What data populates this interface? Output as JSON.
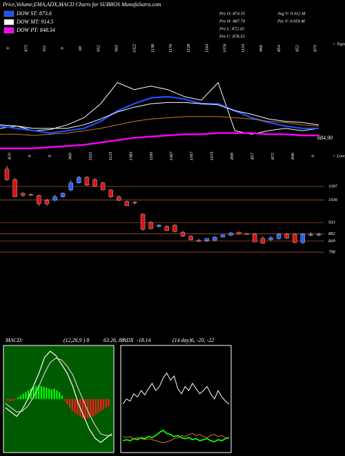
{
  "chart_data": [
    {
      "type": "line",
      "title": "Price,Volume,EMA,ADX,MACD Charts for SUBROS MunafaSutra.com",
      "info": [
        "Pre O: 874.55",
        "Pre H: 887.70",
        "Pre L: 872.45",
        "Pre C: 878.55",
        "Avg V: 0.012 M",
        "Pre V: 0.059 M"
      ],
      "high_labels": [
        "9",
        "873",
        "911",
        "9",
        "69",
        "952",
        "963",
        "1022",
        "1138",
        "1176",
        "1128",
        "1164",
        "1076",
        "1134",
        "966",
        "854",
        "852",
        "870"
      ],
      "low_labels": [
        "820",
        "9",
        "9",
        "969",
        "1021",
        "1123",
        "1083",
        "1160",
        "1067",
        "1097",
        "1073",
        "899",
        "857",
        "872",
        "846",
        "9"
      ],
      "tops_label": "< Tops",
      "lows_label": "< Lows",
      "annotation": "684.90",
      "ylim": [
        0,
        100
      ],
      "series": [
        {
          "color": "#ffffff",
          "values": [
            26,
            28,
            24,
            25,
            29,
            35,
            47,
            65,
            59,
            62,
            59,
            53,
            50,
            65,
            24,
            21,
            24,
            26,
            24,
            26
          ]
        },
        {
          "name": "DOW ST: 873.6",
          "color": "#1f4fff",
          "values": [
            28,
            26,
            24,
            22,
            24,
            26,
            32,
            41,
            47,
            52,
            53,
            51,
            47,
            47,
            41,
            35,
            31,
            28,
            26,
            26
          ]
        },
        {
          "name": "DOW MT: 914.5",
          "color": "#ffffff",
          "values": [
            29,
            28,
            26,
            26,
            26,
            29,
            34,
            40,
            44,
            47,
            48,
            48,
            47,
            46,
            41,
            38,
            34,
            32,
            31,
            29
          ]
        },
        {
          "color": "#c8782a",
          "values": [
            21,
            21,
            20,
            21,
            22,
            24,
            26,
            29,
            32,
            34,
            35,
            36,
            36,
            36,
            35,
            34,
            32,
            31,
            29,
            28
          ]
        },
        {
          "name": "DOW PT: 848.34",
          "color": "#ff00ff",
          "values": [
            9,
            9,
            9,
            10,
            11,
            12,
            14,
            16,
            18,
            19,
            20,
            21,
            21,
            22,
            22,
            22,
            21,
            21,
            20,
            20
          ]
        }
      ]
    },
    {
      "type": "candlestick",
      "ylim": [
        437,
        1238
      ],
      "yticks": [
        1097,
        1036,
        933,
        882,
        849,
        798
      ],
      "up_color": "#2a5cff",
      "down_color": "#e01010",
      "grid_color": "#a0522d",
      "ohlc": [
        [
          1176,
          1191,
          1122,
          1128
        ],
        [
          1128,
          1135,
          1050,
          1050
        ],
        [
          1066,
          1070,
          1050,
          1056
        ],
        [
          1060,
          1066,
          1054,
          1058
        ],
        [
          1056,
          1060,
          1009,
          1018
        ],
        [
          1034,
          1040,
          1009,
          1018
        ],
        [
          1034,
          1060,
          1030,
          1050
        ],
        [
          1050,
          1070,
          1045,
          1066
        ],
        [
          1081,
          1125,
          1075,
          1113
        ],
        [
          1113,
          1145,
          1110,
          1138
        ],
        [
          1138,
          1145,
          1100,
          1103
        ],
        [
          1128,
          1135,
          1095,
          1097
        ],
        [
          1113,
          1118,
          1081,
          1081
        ],
        [
          1081,
          1085,
          1045,
          1050
        ],
        [
          1050,
          1055,
          1030,
          1034
        ],
        [
          1028,
          1032,
          1009,
          1009
        ],
        [
          1025,
          1030,
          1015,
          1022
        ],
        [
          971,
          975,
          896,
          902
        ],
        [
          933,
          940,
          902,
          905
        ],
        [
          915,
          925,
          910,
          921
        ],
        [
          915,
          920,
          896,
          896
        ],
        [
          921,
          925,
          889,
          892
        ],
        [
          889,
          895,
          867,
          871
        ],
        [
          871,
          875,
          852,
          855
        ],
        [
          852,
          858,
          845,
          848
        ],
        [
          850,
          862,
          845,
          861
        ],
        [
          852,
          870,
          850,
          867
        ],
        [
          867,
          880,
          865,
          877
        ],
        [
          875,
          890,
          872,
          886
        ],
        [
          889,
          892,
          877,
          880
        ],
        [
          882,
          886,
          878,
          880
        ],
        [
          880,
          885,
          845,
          845
        ],
        [
          861,
          870,
          836,
          839
        ],
        [
          855,
          870,
          850,
          864
        ],
        [
          860,
          885,
          855,
          880
        ],
        [
          880,
          886,
          858,
          862
        ],
        [
          880,
          885,
          839,
          842
        ],
        [
          842,
          885,
          836,
          880
        ],
        [
          878,
          888,
          872,
          878
        ],
        [
          878,
          887,
          872,
          879
        ]
      ]
    },
    {
      "type": "macd",
      "title": "MACD:",
      "params": "(12,26,9 ) 8",
      "readout": "63.26, 88",
      "ylim": [
        -60,
        60
      ],
      "histogram": [
        -2,
        -3,
        -2,
        -1,
        2,
        4,
        6,
        8,
        10,
        12,
        14,
        15,
        16,
        15,
        14,
        13,
        12,
        11,
        12,
        10,
        8,
        4,
        -2,
        -6,
        -10,
        -14,
        -16,
        -18,
        -20,
        -22,
        -23,
        -22,
        -21,
        -20,
        -18,
        -16,
        -14,
        -12,
        -10,
        -8
      ],
      "series": [
        {
          "color": "#ffffff",
          "values": [
            -10,
            -15,
            -20,
            -12,
            0,
            15,
            30,
            48,
            55,
            50,
            40,
            30,
            15,
            -5,
            -20,
            -35,
            -45,
            -50,
            -45,
            -40
          ]
        },
        {
          "color": "#cfcfcf",
          "values": [
            -5,
            -10,
            -15,
            -14,
            -8,
            2,
            15,
            30,
            42,
            47,
            45,
            38,
            28,
            12,
            -3,
            -18,
            -30,
            -40,
            -42,
            -42
          ]
        }
      ]
    },
    {
      "type": "adx",
      "title": "ADX",
      "readout": "-18.14",
      "params": "(14 day)6, -20, -22",
      "ylim": [
        0,
        100
      ],
      "series": [
        {
          "color": "#ffffff",
          "values": [
            45,
            50,
            48,
            55,
            52,
            58,
            54,
            60,
            65,
            58,
            62,
            70,
            75,
            68,
            72,
            60,
            55,
            62,
            58,
            65,
            60,
            55,
            58,
            62,
            55,
            50,
            58,
            52,
            48,
            45
          ]
        },
        {
          "color": "#00ff00",
          "values": [
            10,
            11,
            10,
            12,
            11,
            13,
            12,
            14,
            13,
            15,
            18,
            20,
            17,
            16,
            14,
            15,
            13,
            12,
            13,
            11,
            12,
            10,
            11,
            12,
            10,
            9,
            11,
            10,
            12,
            13
          ]
        },
        {
          "color": "#d2781e",
          "values": [
            14,
            13,
            14,
            12,
            13,
            12,
            11,
            12,
            11,
            10,
            9,
            8,
            9,
            10,
            12,
            13,
            15,
            14,
            16,
            17,
            15,
            16,
            14,
            13,
            15,
            16,
            14,
            15,
            13,
            12
          ]
        }
      ]
    }
  ]
}
